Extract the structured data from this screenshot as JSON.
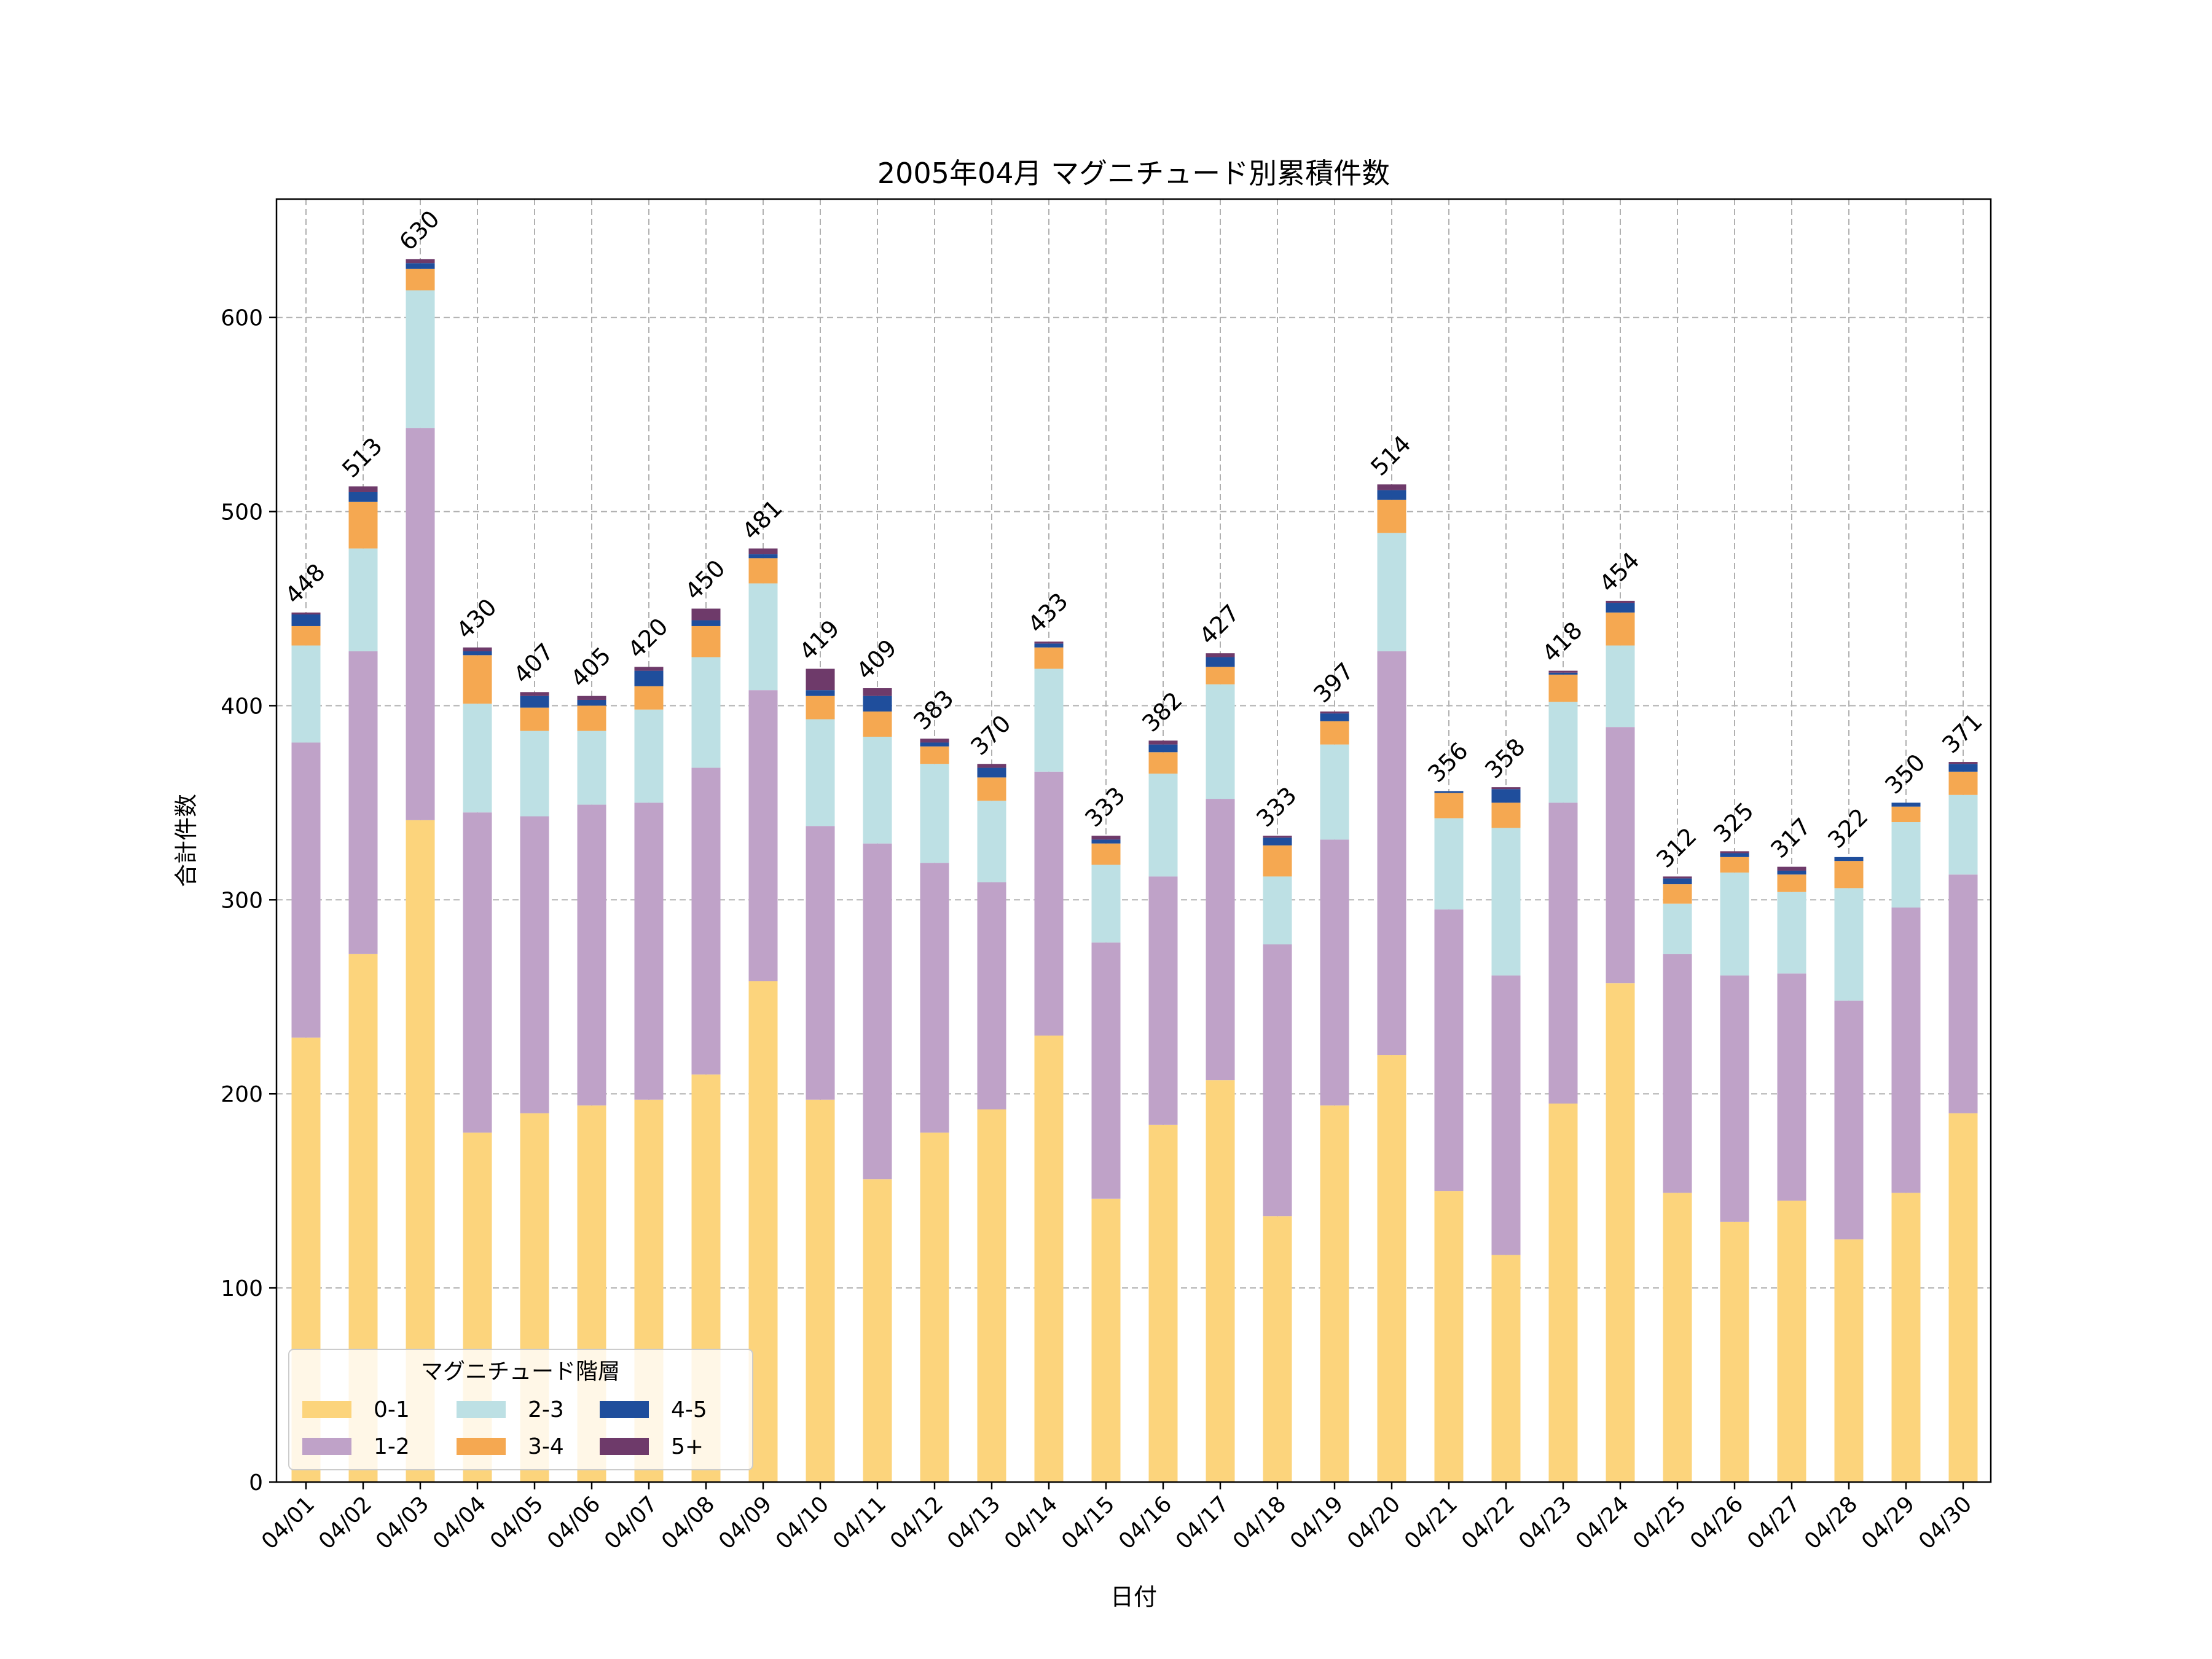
{
  "chart_data": {
    "type": "bar",
    "stacked": true,
    "title": "2005年04月 マグニチュード別累積件数",
    "xlabel": "日付",
    "ylabel": "合計件数",
    "ylim": [
      0,
      661
    ],
    "yticks": [
      0,
      100,
      200,
      300,
      400,
      500,
      600
    ],
    "grid": true,
    "legend_title": "マグニチュード階層",
    "legend_position": "lower-left",
    "categories": [
      "04/01",
      "04/02",
      "04/03",
      "04/04",
      "04/05",
      "04/06",
      "04/07",
      "04/08",
      "04/09",
      "04/10",
      "04/11",
      "04/12",
      "04/13",
      "04/14",
      "04/15",
      "04/16",
      "04/17",
      "04/18",
      "04/19",
      "04/20",
      "04/21",
      "04/22",
      "04/23",
      "04/24",
      "04/25",
      "04/26",
      "04/27",
      "04/28",
      "04/29",
      "04/30"
    ],
    "series": [
      {
        "name": "0-1",
        "color": "#fcd47c",
        "values": [
          229,
          272,
          341,
          180,
          190,
          194,
          197,
          210,
          258,
          197,
          156,
          180,
          192,
          230,
          146,
          184,
          207,
          137,
          194,
          220,
          150,
          117,
          195,
          257,
          149,
          134,
          145,
          125,
          149,
          190
        ]
      },
      {
        "name": "1-2",
        "color": "#bfa2c8",
        "values": [
          152,
          156,
          202,
          165,
          153,
          155,
          153,
          158,
          150,
          141,
          173,
          139,
          117,
          136,
          132,
          128,
          145,
          140,
          137,
          208,
          145,
          144,
          155,
          132,
          123,
          127,
          117,
          123,
          147,
          123
        ]
      },
      {
        "name": "2-3",
        "color": "#bde0e4",
        "values": [
          50,
          53,
          71,
          56,
          44,
          38,
          48,
          57,
          55,
          55,
          55,
          51,
          42,
          53,
          40,
          53,
          59,
          35,
          49,
          61,
          47,
          76,
          52,
          42,
          26,
          53,
          42,
          58,
          44,
          41
        ]
      },
      {
        "name": "3-4",
        "color": "#f5a851",
        "values": [
          10,
          24,
          11,
          25,
          12,
          13,
          12,
          16,
          13,
          12,
          13,
          9,
          12,
          11,
          11,
          11,
          9,
          16,
          12,
          17,
          13,
          13,
          14,
          17,
          10,
          8,
          9,
          14,
          8,
          12
        ]
      },
      {
        "name": "4-5",
        "color": "#1f4e9c",
        "values": [
          6,
          5,
          3,
          2,
          6,
          3,
          8,
          3,
          2,
          3,
          8,
          2,
          5,
          2,
          2,
          4,
          5,
          4,
          4,
          5,
          1,
          7,
          1,
          5,
          3,
          2,
          2,
          2,
          2,
          4
        ]
      },
      {
        "name": "5+",
        "color": "#6e3a6a",
        "values": [
          1,
          3,
          2,
          2,
          2,
          2,
          2,
          6,
          3,
          11,
          4,
          2,
          2,
          1,
          2,
          2,
          2,
          1,
          1,
          3,
          0,
          1,
          1,
          1,
          1,
          1,
          2,
          0,
          0,
          1
        ]
      }
    ],
    "totals": [
      448,
      513,
      630,
      430,
      407,
      405,
      420,
      450,
      481,
      419,
      409,
      383,
      370,
      433,
      333,
      382,
      427,
      333,
      397,
      514,
      356,
      358,
      418,
      454,
      312,
      325,
      317,
      322,
      350,
      371
    ]
  }
}
